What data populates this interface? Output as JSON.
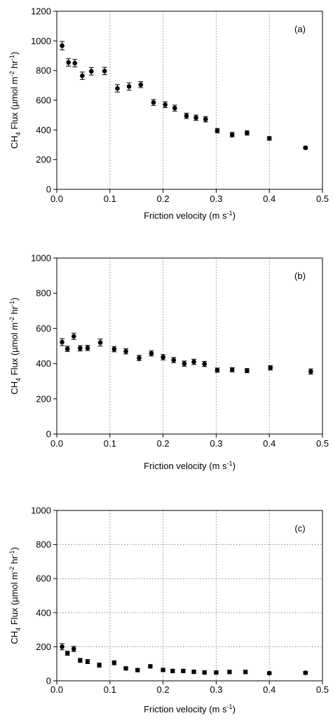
{
  "chart_data": [
    {
      "type": "scatter",
      "panel_label": "(a)",
      "ylabel_parts": {
        "a": "CH",
        "sub": "4",
        "b": " Flux (µmol m",
        "sup1": "-2",
        "c": " hr",
        "sup2": "-1",
        "d": ")"
      },
      "xlabel_parts": {
        "a": "Friction velocity (m s",
        "sup": "-1",
        "b": ")"
      },
      "xlim": [
        0,
        0.5
      ],
      "ylim": [
        0,
        1200
      ],
      "xticks": [
        "0.0",
        "0.1",
        "0.2",
        "0.3",
        "0.4",
        "0.5"
      ],
      "yticks": [
        "0",
        "200",
        "400",
        "600",
        "800",
        "1000",
        "1200"
      ],
      "grid": "vertical dotted",
      "series": [
        {
          "x": [
            0.01,
            0.022,
            0.034,
            0.048,
            0.065,
            0.09,
            0.114,
            0.136,
            0.158,
            0.182,
            0.204,
            0.222,
            0.244,
            0.262,
            0.28,
            0.302,
            0.33,
            0.358,
            0.4,
            0.468
          ],
          "y": [
            968,
            855,
            850,
            765,
            795,
            797,
            680,
            693,
            705,
            585,
            570,
            547,
            495,
            482,
            472,
            395,
            368,
            380,
            343,
            280
          ],
          "err": [
            28,
            25,
            25,
            25,
            25,
            25,
            25,
            25,
            20,
            20,
            20,
            20,
            18,
            18,
            18,
            15,
            15,
            15,
            12,
            8
          ]
        }
      ]
    },
    {
      "type": "scatter",
      "panel_label": "(b)",
      "ylabel_parts": {
        "a": "CH",
        "sub": "4",
        "b": " Flux (µmol m",
        "sup1": "-2",
        "c": " hr",
        "sup2": "-1",
        "d": ")"
      },
      "xlabel_parts": {
        "a": "Friction velocity (m s",
        "sup": "-1",
        "b": ")"
      },
      "xlim": [
        0,
        0.5
      ],
      "ylim": [
        0,
        1000
      ],
      "xticks": [
        "0.0",
        "0.1",
        "0.2",
        "0.3",
        "0.4",
        "0.5"
      ],
      "yticks": [
        "0",
        "200",
        "400",
        "600",
        "800",
        "1000"
      ],
      "grid": "vertical dotted",
      "series": [
        {
          "x": [
            0.01,
            0.02,
            0.032,
            0.044,
            0.058,
            0.082,
            0.108,
            0.13,
            0.155,
            0.178,
            0.2,
            0.22,
            0.24,
            0.258,
            0.278,
            0.302,
            0.33,
            0.358,
            0.402,
            0.478
          ],
          "y": [
            522,
            484,
            555,
            487,
            489,
            520,
            482,
            470,
            432,
            458,
            436,
            420,
            400,
            410,
            398,
            363,
            365,
            360,
            376,
            355
          ],
          "err": [
            20,
            15,
            18,
            15,
            15,
            20,
            15,
            15,
            15,
            15,
            15,
            15,
            15,
            15,
            15,
            12,
            12,
            12,
            12,
            15
          ]
        }
      ]
    },
    {
      "type": "scatter",
      "panel_label": "(c)",
      "ylabel_parts": {
        "a": "CH",
        "sub": "4",
        "b": " Flux (µmol m",
        "sup1": "-2",
        "c": " hr",
        "sup2": "-1",
        "d": ")"
      },
      "xlabel_parts": {
        "a": "Friction velocity (m s",
        "sup": "-1",
        "b": ")"
      },
      "xlim": [
        0,
        0.5
      ],
      "ylim": [
        0,
        1000
      ],
      "xticks": [
        "0.0",
        "0.1",
        "0.2",
        "0.3",
        "0.4",
        "0.5"
      ],
      "yticks": [
        "0",
        "200",
        "400",
        "600",
        "800",
        "1000"
      ],
      "grid": "dotted both axes",
      "series": [
        {
          "x": [
            0.01,
            0.02,
            0.032,
            0.044,
            0.058,
            0.08,
            0.108,
            0.13,
            0.152,
            0.176,
            0.2,
            0.218,
            0.238,
            0.258,
            0.278,
            0.3,
            0.325,
            0.355,
            0.4,
            0.468
          ],
          "y": [
            200,
            162,
            187,
            120,
            113,
            92,
            106,
            73,
            63,
            85,
            64,
            58,
            58,
            53,
            49,
            49,
            52,
            52,
            45,
            47
          ],
          "err": [
            18,
            12,
            15,
            12,
            12,
            12,
            12,
            10,
            10,
            10,
            10,
            10,
            10,
            10,
            10,
            10,
            10,
            10,
            8,
            8
          ]
        }
      ]
    }
  ]
}
